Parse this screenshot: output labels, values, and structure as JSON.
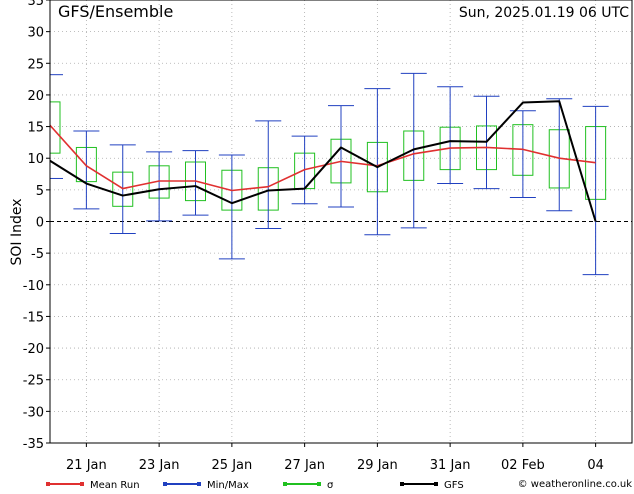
{
  "header": {
    "title": "GFS/Ensemble",
    "run": "Sun, 2025.01.19  06 UTC"
  },
  "credit": "© weatheronline.co.uk",
  "colors": {
    "mean_run": "#e03030",
    "min_max": "#2040c0",
    "sigma": "#20c020",
    "gfs": "#000000",
    "grid": "#aaaaaa"
  },
  "chart_data": {
    "type": "line",
    "ylabel": "SOI Index",
    "ylim": [
      -35,
      35
    ],
    "y_ticks": [
      -35,
      -30,
      -25,
      -20,
      -15,
      -10,
      -5,
      0,
      5,
      10,
      15,
      20,
      25,
      30,
      35
    ],
    "xlim": [
      0,
      16
    ],
    "x_ticks": [
      {
        "x": 1,
        "label": "21 Jan"
      },
      {
        "x": 3,
        "label": "23 Jan"
      },
      {
        "x": 5,
        "label": "25 Jan"
      },
      {
        "x": 7,
        "label": "27 Jan"
      },
      {
        "x": 9,
        "label": "29 Jan"
      },
      {
        "x": 11,
        "label": "31 Jan"
      },
      {
        "x": 13,
        "label": "02 Feb"
      },
      {
        "x": 15,
        "label": "04"
      }
    ],
    "grid": true,
    "zero_line": "dashed",
    "legend": [
      {
        "label": "Mean Run",
        "key": "mean_run"
      },
      {
        "label": "Min/Max",
        "key": "min_max"
      },
      {
        "label": "σ",
        "key": "sigma"
      },
      {
        "label": "GFS",
        "key": "gfs"
      }
    ],
    "x": [
      0,
      1,
      2,
      3,
      4,
      5,
      6,
      7,
      8,
      9,
      10,
      11,
      12,
      13,
      14,
      15,
      16
    ],
    "series": [
      {
        "name": "Mean Run",
        "key": "mean_run",
        "values": [
          15.2,
          8.8,
          5.2,
          6.4,
          6.4,
          4.9,
          5.5,
          8.2,
          9.5,
          8.8,
          10.7,
          11.6,
          11.7,
          11.4,
          10.0,
          9.3,
          null
        ]
      },
      {
        "name": "GFS",
        "key": "gfs",
        "values": [
          9.6,
          6.0,
          4.1,
          5.1,
          5.6,
          2.9,
          4.9,
          5.2,
          11.7,
          8.6,
          11.4,
          12.7,
          12.6,
          18.8,
          19.0,
          0.0,
          null
        ]
      }
    ],
    "min_max": [
      {
        "x": 0,
        "min": 6.8,
        "max": 23.2
      },
      {
        "x": 1,
        "min": 2.0,
        "max": 14.3
      },
      {
        "x": 2,
        "min": -1.9,
        "max": 12.1
      },
      {
        "x": 3,
        "min": 0.1,
        "max": 11.0
      },
      {
        "x": 4,
        "min": 1.0,
        "max": 11.2
      },
      {
        "x": 5,
        "min": -5.9,
        "max": 10.5
      },
      {
        "x": 6,
        "min": -1.1,
        "max": 15.9
      },
      {
        "x": 7,
        "min": 2.8,
        "max": 13.5
      },
      {
        "x": 8,
        "min": 2.3,
        "max": 18.3
      },
      {
        "x": 9,
        "min": -2.1,
        "max": 21.0
      },
      {
        "x": 10,
        "min": -1.0,
        "max": 23.4
      },
      {
        "x": 11,
        "min": 6.0,
        "max": 21.3
      },
      {
        "x": 12,
        "min": 5.2,
        "max": 19.8
      },
      {
        "x": 13,
        "min": 3.8,
        "max": 17.5
      },
      {
        "x": 14,
        "min": 1.7,
        "max": 19.4
      },
      {
        "x": 15,
        "min": -8.4,
        "max": 18.2
      }
    ],
    "sigma": [
      {
        "x": 0,
        "low": 10.8,
        "high": 18.9
      },
      {
        "x": 1,
        "low": 6.3,
        "high": 11.7
      },
      {
        "x": 2,
        "low": 2.4,
        "high": 7.8
      },
      {
        "x": 3,
        "low": 3.7,
        "high": 8.8
      },
      {
        "x": 4,
        "low": 3.3,
        "high": 9.4
      },
      {
        "x": 5,
        "low": 1.8,
        "high": 8.1
      },
      {
        "x": 6,
        "low": 1.8,
        "high": 8.5
      },
      {
        "x": 7,
        "low": 5.2,
        "high": 10.8
      },
      {
        "x": 8,
        "low": 6.1,
        "high": 13.0
      },
      {
        "x": 9,
        "low": 4.7,
        "high": 12.5
      },
      {
        "x": 10,
        "low": 6.5,
        "high": 14.3
      },
      {
        "x": 11,
        "low": 8.2,
        "high": 14.9
      },
      {
        "x": 12,
        "low": 8.2,
        "high": 15.1
      },
      {
        "x": 13,
        "low": 7.3,
        "high": 15.3
      },
      {
        "x": 14,
        "low": 5.3,
        "high": 14.5
      },
      {
        "x": 15,
        "low": 3.5,
        "high": 15.0
      }
    ]
  }
}
